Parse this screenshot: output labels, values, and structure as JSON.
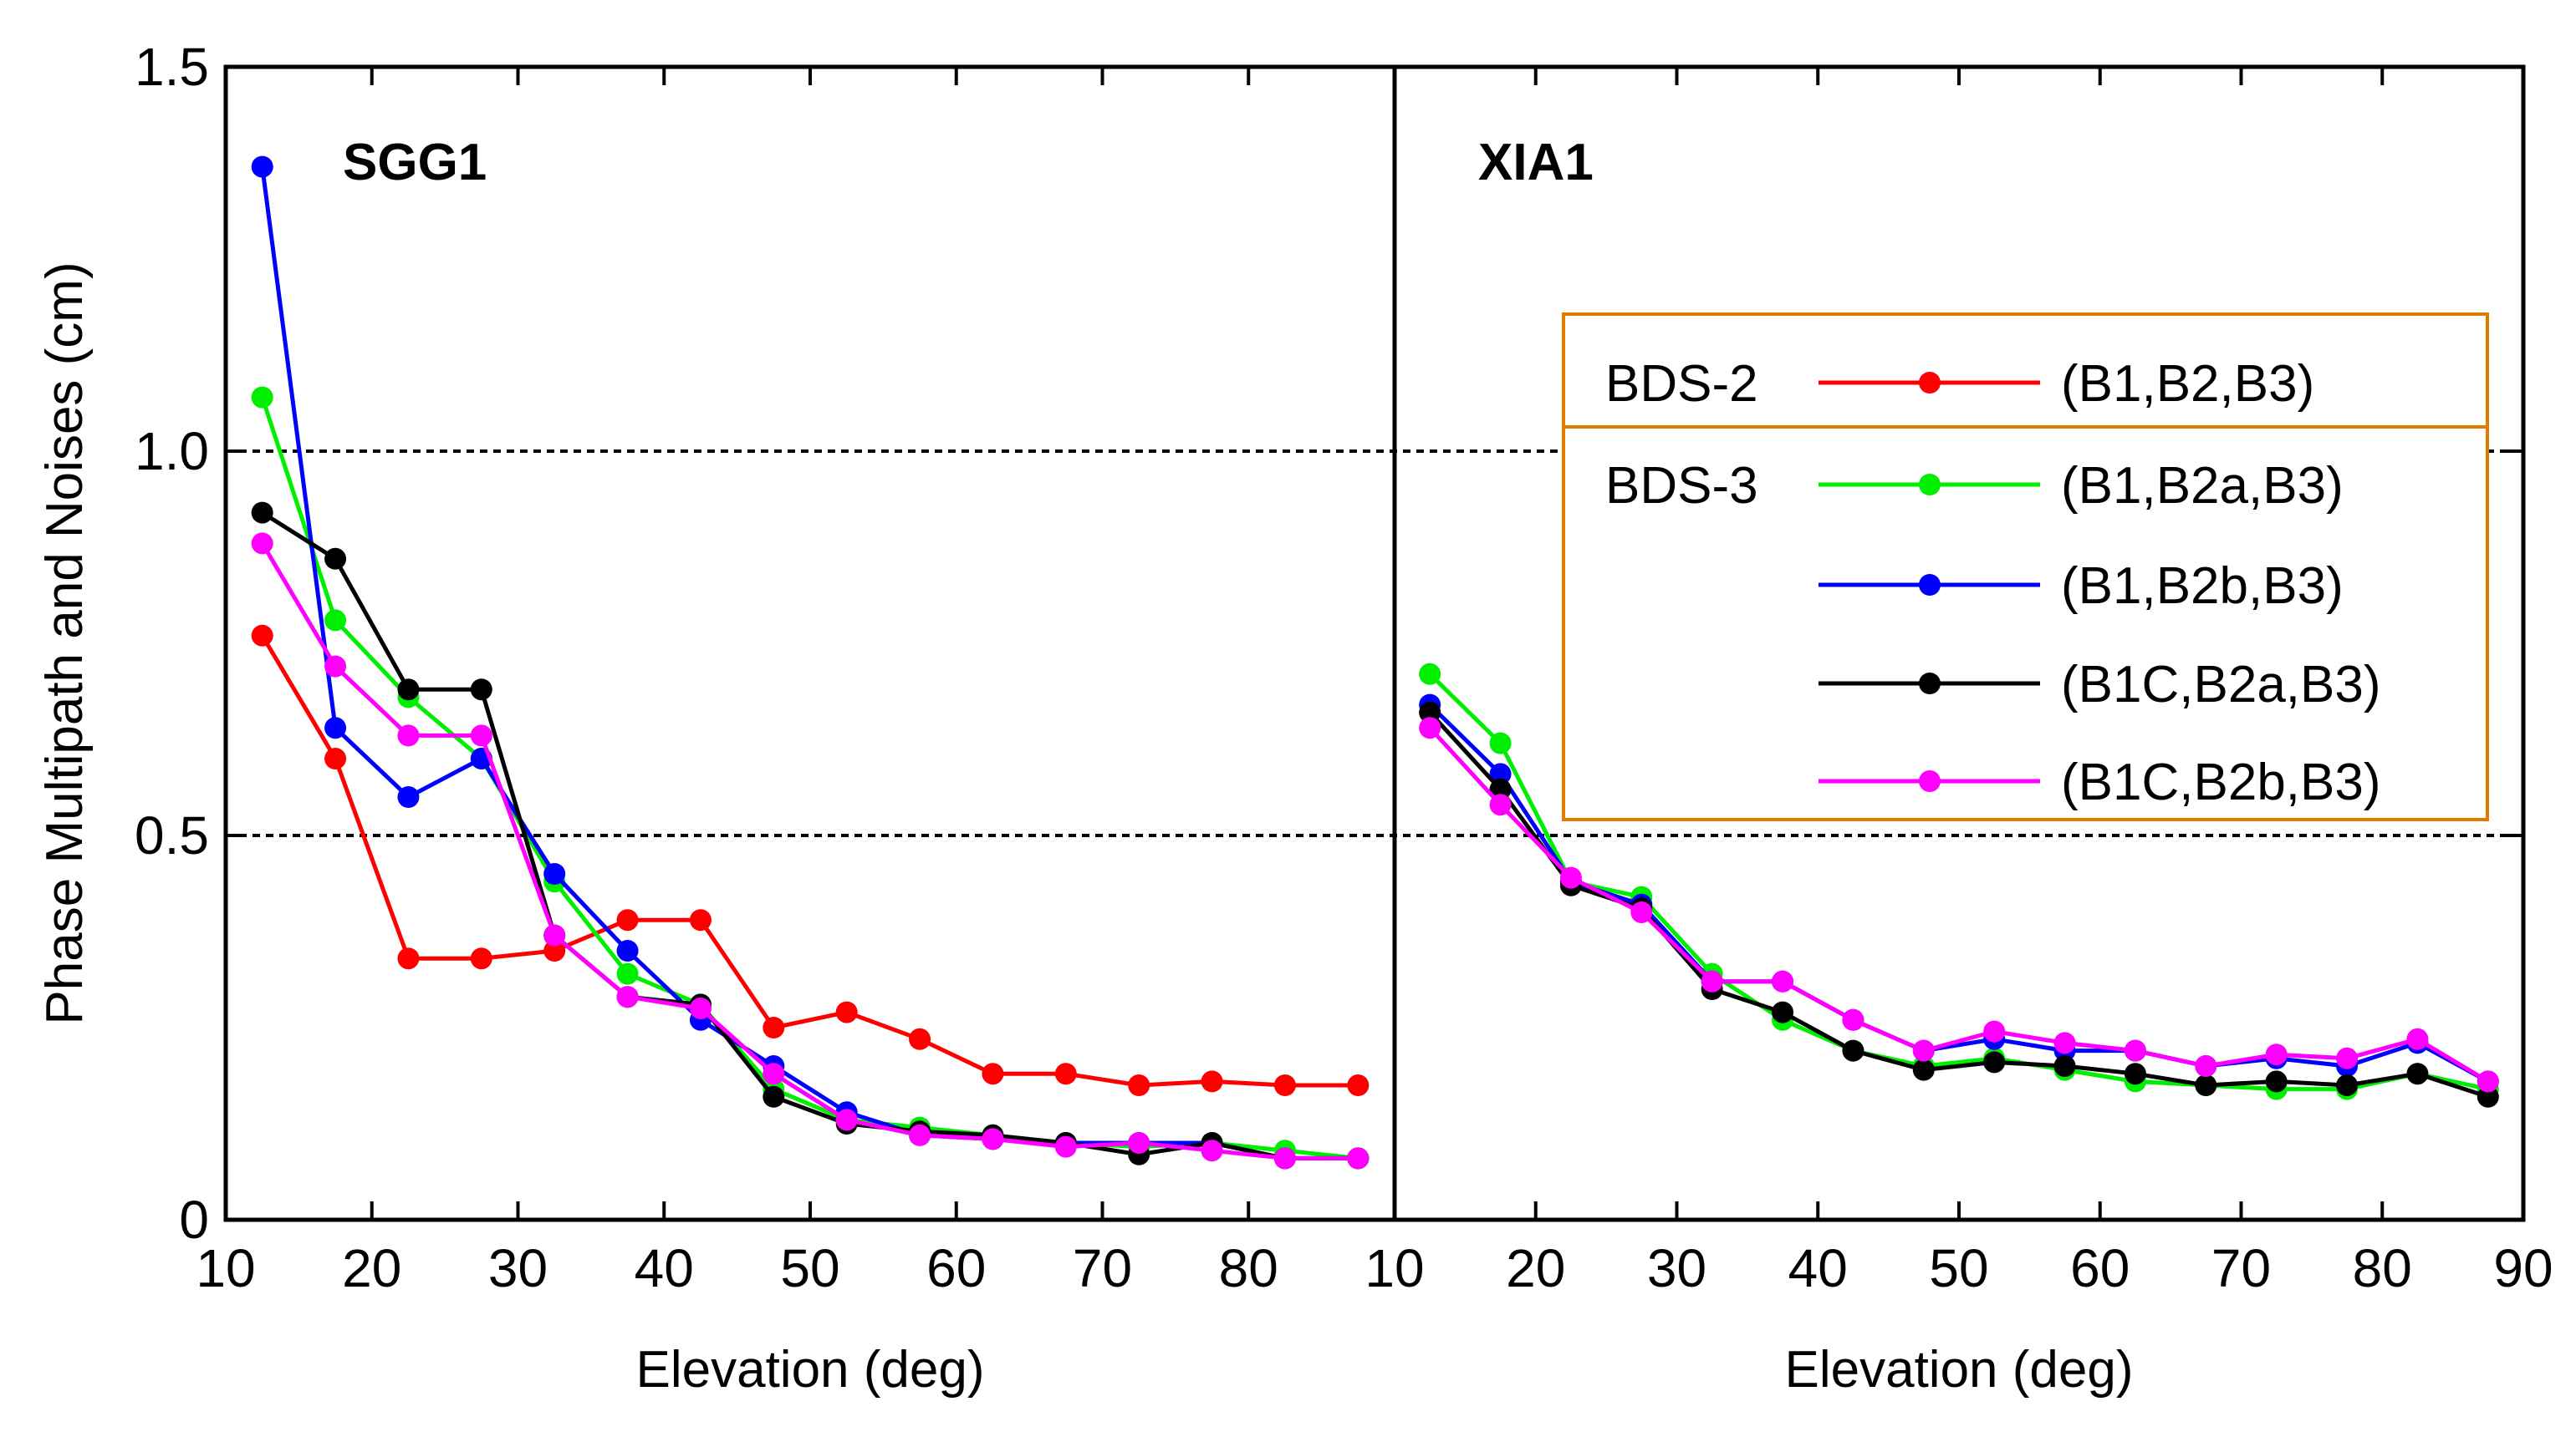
{
  "chart_data": {
    "type": "line",
    "ylabel": "Phase Multipath and Noises (cm)",
    "ylim": [
      0,
      1.5
    ],
    "yticks": [
      0,
      0.5,
      1.0,
      1.5
    ],
    "ytick_labels": [
      "0",
      "0.5",
      "1.0",
      "1.5"
    ],
    "reference_lines": [
      0.5,
      1.0
    ],
    "legend": {
      "placement": "upper-right of second panel",
      "group_labels": [
        "BDS-2",
        "BDS-3"
      ],
      "entries": [
        {
          "group": "BDS-2",
          "label": "(B1,B2,B3)",
          "color": "#ff0000"
        },
        {
          "group": "BDS-3",
          "label": "(B1,B2a,B3)",
          "color": "#00ee00"
        },
        {
          "group": "BDS-3",
          "label": "(B1,B2b,B3)",
          "color": "#0000ff"
        },
        {
          "group": "BDS-3",
          "label": "(B1C,B2a,B3)",
          "color": "#000000"
        },
        {
          "group": "BDS-3",
          "label": "(B1C,B2b,B3)",
          "color": "#ff00ff"
        }
      ],
      "box_color": "#e07b00"
    },
    "panels": [
      {
        "title": "SGG1",
        "xlabel": "Elevation (deg)",
        "xlim": [
          10,
          90
        ],
        "xticks": [
          10,
          20,
          30,
          40,
          50,
          60,
          70,
          80
        ],
        "xtick_labels": [
          "10",
          "20",
          "30",
          "40",
          "50",
          "60",
          "70",
          "80"
        ],
        "x": [
          12.5,
          17.5,
          22.5,
          27.5,
          32.5,
          37.5,
          42.5,
          47.5,
          52.5,
          57.5,
          62.5,
          67.5,
          72.5,
          77.5,
          82.5,
          87.5
        ],
        "series": [
          {
            "name": "(B1,B2,B3)",
            "color": "#ff0000",
            "values": [
              0.76,
              0.6,
              0.34,
              0.34,
              0.35,
              0.39,
              0.39,
              0.25,
              0.27,
              0.235,
              0.19,
              0.19,
              0.175,
              0.18,
              0.175,
              0.175
            ]
          },
          {
            "name": "(B1,B2a,B3)",
            "color": "#00ee00",
            "values": [
              1.07,
              0.78,
              0.68,
              0.6,
              0.44,
              0.32,
              0.28,
              0.17,
              0.13,
              0.12,
              0.11,
              0.1,
              0.095,
              0.1,
              0.09,
              0.08
            ]
          },
          {
            "name": "(B1,B2b,B3)",
            "color": "#0000ff",
            "values": [
              1.37,
              0.64,
              0.55,
              0.6,
              0.45,
              0.35,
              0.26,
              0.2,
              0.14,
              0.11,
              0.105,
              0.1,
              0.1,
              0.1,
              0.08,
              0.08
            ]
          },
          {
            "name": "(B1C,B2a,B3)",
            "color": "#000000",
            "values": [
              0.92,
              0.86,
              0.69,
              0.69,
              0.37,
              0.29,
              0.28,
              0.16,
              0.125,
              0.115,
              0.11,
              0.1,
              0.085,
              0.1,
              0.08,
              0.08
            ]
          },
          {
            "name": "(B1C,B2b,B3)",
            "color": "#ff00ff",
            "values": [
              0.88,
              0.72,
              0.63,
              0.63,
              0.37,
              0.29,
              0.275,
              0.19,
              0.13,
              0.11,
              0.105,
              0.095,
              0.1,
              0.09,
              0.08,
              0.08
            ]
          }
        ]
      },
      {
        "title": "XIA1",
        "xlabel": "Elevation (deg)",
        "xlim": [
          10,
          90
        ],
        "xticks": [
          10,
          20,
          30,
          40,
          50,
          60,
          70,
          80,
          90
        ],
        "xtick_labels": [
          "10",
          "20",
          "30",
          "40",
          "50",
          "60",
          "70",
          "80",
          "90"
        ],
        "x": [
          12.5,
          17.5,
          22.5,
          27.5,
          32.5,
          37.5,
          42.5,
          47.5,
          52.5,
          57.5,
          62.5,
          67.5,
          72.5,
          77.5,
          82.5,
          87.5
        ],
        "series": [
          {
            "name": "(B1,B2a,B3)",
            "color": "#00ee00",
            "values": [
              0.71,
              0.62,
              0.44,
              0.42,
              0.32,
              0.26,
              0.22,
              0.2,
              0.21,
              0.195,
              0.18,
              0.175,
              0.17,
              0.17,
              0.19,
              0.17
            ]
          },
          {
            "name": "(B1,B2b,B3)",
            "color": "#0000ff",
            "values": [
              0.67,
              0.58,
              0.44,
              0.41,
              0.31,
              0.31,
              0.26,
              0.22,
              0.235,
              0.22,
              0.22,
              0.2,
              0.21,
              0.2,
              0.23,
              0.18
            ]
          },
          {
            "name": "(B1C,B2a,B3)",
            "color": "#000000",
            "values": [
              0.66,
              0.56,
              0.435,
              0.405,
              0.3,
              0.27,
              0.22,
              0.195,
              0.205,
              0.2,
              0.19,
              0.175,
              0.18,
              0.175,
              0.19,
              0.16
            ]
          },
          {
            "name": "(B1C,B2b,B3)",
            "color": "#ff00ff",
            "values": [
              0.64,
              0.54,
              0.445,
              0.4,
              0.31,
              0.31,
              0.26,
              0.22,
              0.245,
              0.23,
              0.22,
              0.2,
              0.215,
              0.21,
              0.235,
              0.18
            ]
          }
        ]
      }
    ]
  }
}
